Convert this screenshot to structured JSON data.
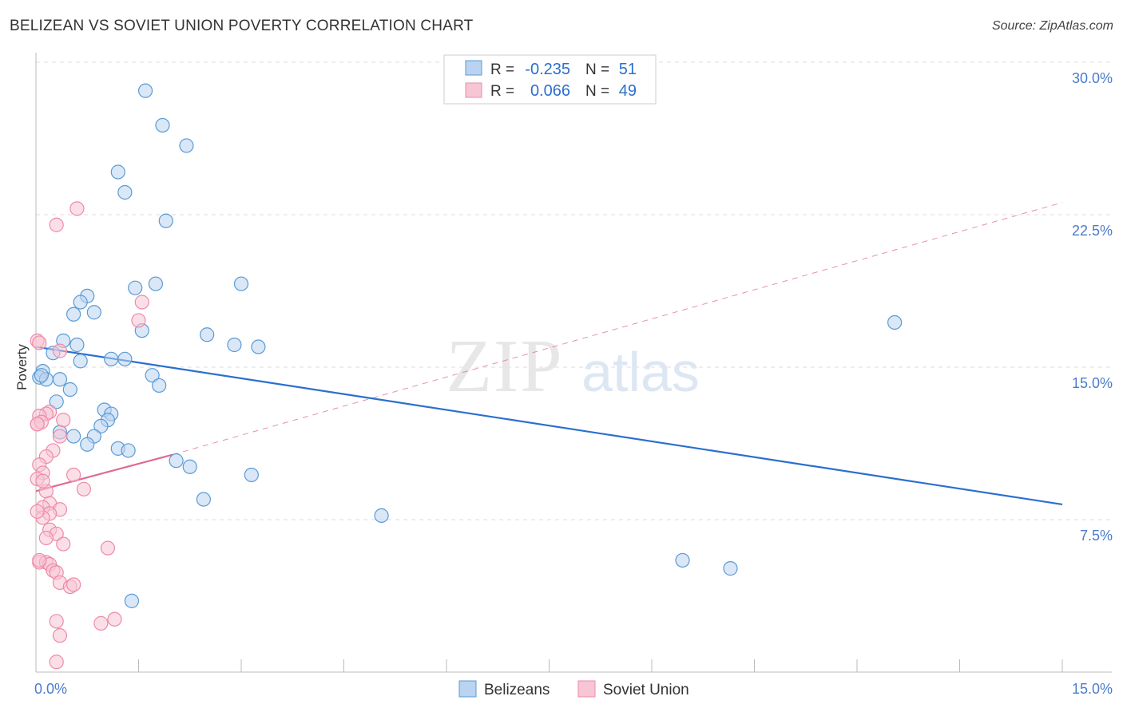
{
  "title": "BELIZEAN VS SOVIET UNION POVERTY CORRELATION CHART",
  "source": "Source: ZipAtlas.com",
  "watermark": {
    "zip": "ZIP",
    "atlas": "atlas"
  },
  "colors": {
    "blue": "#5b9bd5",
    "blue_fill": "#b9d3f0",
    "blue_line": "#2a6fcf",
    "pink": "#ee8aaa",
    "pink_fill": "#f8c5d4",
    "pink_line": "#e06a93",
    "axis_text": "#4a7ccc",
    "grid": "#dddddd"
  },
  "legend": {
    "rows": [
      {
        "r_label": "R =",
        "r_value": "-0.235",
        "n_label": "N =",
        "n_value": "51"
      },
      {
        "r_label": "R =",
        "r_value": "0.066",
        "n_label": "N =",
        "n_value": "49"
      }
    ]
  },
  "chart_data": {
    "type": "scatter",
    "title": "BELIZEAN VS SOVIET UNION POVERTY CORRELATION CHART",
    "ylabel": "Poverty",
    "xlabel": "",
    "xlim": [
      0,
      15
    ],
    "ylim": [
      0,
      30
    ],
    "x_tick_labels": [
      {
        "value": 0,
        "label": "0.0%"
      },
      {
        "value": 15,
        "label": "15.0%"
      }
    ],
    "y_tick_labels": [
      {
        "value": 7.5,
        "label": "7.5%"
      },
      {
        "value": 15,
        "label": "15.0%"
      },
      {
        "value": 22.5,
        "label": "22.5%"
      },
      {
        "value": 30,
        "label": "30.0%"
      }
    ],
    "series": [
      {
        "name": "Belizeans",
        "points": [
          [
            1.6,
            28.6
          ],
          [
            1.85,
            26.9
          ],
          [
            2.2,
            25.9
          ],
          [
            1.2,
            24.6
          ],
          [
            1.3,
            23.6
          ],
          [
            1.9,
            22.2
          ],
          [
            1.45,
            18.9
          ],
          [
            1.75,
            19.1
          ],
          [
            3.0,
            19.1
          ],
          [
            0.75,
            18.5
          ],
          [
            0.65,
            18.2
          ],
          [
            0.85,
            17.7
          ],
          [
            0.55,
            17.6
          ],
          [
            1.55,
            16.8
          ],
          [
            2.5,
            16.6
          ],
          [
            0.4,
            16.3
          ],
          [
            0.6,
            16.1
          ],
          [
            2.9,
            16.1
          ],
          [
            3.25,
            16.0
          ],
          [
            0.25,
            15.7
          ],
          [
            0.65,
            15.3
          ],
          [
            1.1,
            15.4
          ],
          [
            1.3,
            15.4
          ],
          [
            0.1,
            14.8
          ],
          [
            0.05,
            14.5
          ],
          [
            0.15,
            14.4
          ],
          [
            0.35,
            14.4
          ],
          [
            1.7,
            14.6
          ],
          [
            1.8,
            14.1
          ],
          [
            0.5,
            13.9
          ],
          [
            0.3,
            13.3
          ],
          [
            1.0,
            12.9
          ],
          [
            1.1,
            12.7
          ],
          [
            1.05,
            12.4
          ],
          [
            0.95,
            12.1
          ],
          [
            0.35,
            11.8
          ],
          [
            0.55,
            11.6
          ],
          [
            0.85,
            11.6
          ],
          [
            0.75,
            11.2
          ],
          [
            1.2,
            11.0
          ],
          [
            1.35,
            10.9
          ],
          [
            2.05,
            10.4
          ],
          [
            2.25,
            10.1
          ],
          [
            3.15,
            9.7
          ],
          [
            2.45,
            8.5
          ],
          [
            5.05,
            7.7
          ],
          [
            12.55,
            17.2
          ],
          [
            9.45,
            5.5
          ],
          [
            10.15,
            5.1
          ],
          [
            1.4,
            3.5
          ],
          [
            0.08,
            14.6
          ]
        ],
        "trend": {
          "x": [
            0,
            15
          ],
          "y": [
            16.0,
            8.25
          ]
        }
      },
      {
        "name": "Soviet Union",
        "points": [
          [
            0.6,
            22.8
          ],
          [
            0.3,
            22.0
          ],
          [
            1.55,
            18.2
          ],
          [
            1.5,
            17.3
          ],
          [
            0.35,
            15.8
          ],
          [
            0.02,
            16.3
          ],
          [
            0.05,
            16.2
          ],
          [
            0.2,
            12.8
          ],
          [
            0.15,
            12.7
          ],
          [
            0.05,
            12.6
          ],
          [
            0.4,
            12.4
          ],
          [
            0.02,
            12.2
          ],
          [
            0.08,
            12.3
          ],
          [
            0.35,
            11.6
          ],
          [
            0.25,
            10.9
          ],
          [
            0.15,
            10.6
          ],
          [
            0.05,
            10.2
          ],
          [
            0.1,
            9.8
          ],
          [
            0.55,
            9.7
          ],
          [
            0.02,
            9.5
          ],
          [
            0.7,
            9.0
          ],
          [
            0.15,
            8.9
          ],
          [
            0.2,
            8.3
          ],
          [
            0.1,
            8.1
          ],
          [
            0.35,
            8.0
          ],
          [
            0.2,
            7.8
          ],
          [
            0.1,
            7.6
          ],
          [
            0.2,
            7.0
          ],
          [
            0.3,
            6.8
          ],
          [
            0.15,
            6.6
          ],
          [
            0.4,
            6.3
          ],
          [
            1.05,
            6.1
          ],
          [
            0.05,
            5.4
          ],
          [
            0.15,
            5.4
          ],
          [
            0.2,
            5.3
          ],
          [
            0.25,
            5.0
          ],
          [
            0.3,
            4.9
          ],
          [
            0.35,
            4.4
          ],
          [
            0.5,
            4.2
          ],
          [
            0.55,
            4.3
          ],
          [
            0.3,
            2.5
          ],
          [
            1.15,
            2.6
          ],
          [
            0.95,
            2.4
          ],
          [
            0.35,
            1.8
          ],
          [
            0.3,
            0.5
          ],
          [
            0.05,
            5.5
          ],
          [
            0.1,
            9.4
          ],
          [
            0.02,
            7.9
          ],
          [
            0.02,
            12.2
          ]
        ],
        "trend": {
          "x": [
            0,
            2.0
          ],
          "y": [
            8.9,
            10.7
          ]
        },
        "trend_extended": {
          "x": [
            2.0,
            15
          ],
          "y": [
            10.7,
            23.1
          ]
        }
      }
    ],
    "legend_position": "bottom-center"
  }
}
